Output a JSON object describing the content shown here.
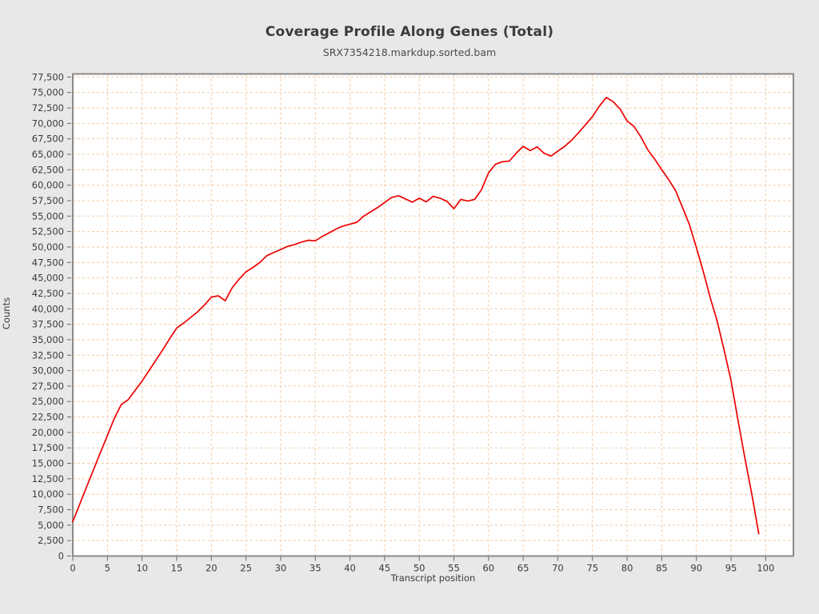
{
  "page": {
    "background": "#e8e8e8",
    "plot_background": "#ffffff"
  },
  "header": {
    "title": "Coverage Profile Along Genes (Total)",
    "subtitle": "SRX7354218.markdup.sorted.bam"
  },
  "axes": {
    "x_label": "Transcript position",
    "y_label": "Counts"
  },
  "chart_data": {
    "type": "line",
    "title": "Coverage Profile Along Genes (Total)",
    "subtitle": "SRX7354218.markdup.sorted.bam",
    "xlabel": "Transcript position",
    "ylabel": "Counts",
    "xlim": [
      0,
      104
    ],
    "ylim": [
      0,
      78000
    ],
    "grid": {
      "visible": true,
      "style": "dashed",
      "color": "#f3c9a2"
    },
    "legend_position": "none",
    "x_ticks": [
      0,
      5,
      10,
      15,
      20,
      25,
      30,
      35,
      40,
      45,
      50,
      55,
      60,
      65,
      70,
      75,
      80,
      85,
      90,
      95,
      100
    ],
    "y_ticks": [
      0,
      2500,
      5000,
      7500,
      10000,
      12500,
      15000,
      17500,
      20000,
      22500,
      25000,
      27500,
      30000,
      32500,
      35000,
      37500,
      40000,
      42500,
      45000,
      47500,
      50000,
      52500,
      55000,
      57500,
      60000,
      62500,
      65000,
      67500,
      70000,
      72500,
      75000,
      77500
    ],
    "series": [
      {
        "name": "SRX7354218.markdup.sorted.bam",
        "color": "#ee0000",
        "x_start": 0,
        "x_step": 1,
        "values": [
          5570,
          8400,
          11200,
          14000,
          16800,
          19500,
          22300,
          24500,
          25300,
          26800,
          28300,
          30000,
          31700,
          33400,
          35200,
          36900,
          37700,
          38600,
          39500,
          40600,
          41900,
          42100,
          41300,
          43400,
          44800,
          46000,
          46700,
          47500,
          48600,
          49100,
          49600,
          50100,
          50400,
          50800,
          51100,
          51000,
          51700,
          52300,
          52900,
          53400,
          53700,
          54000,
          55000,
          55700,
          56400,
          57200,
          58000,
          58300,
          57800,
          57250,
          57900,
          57300,
          58200,
          57900,
          57400,
          56200,
          57700,
          57450,
          57700,
          59300,
          62000,
          63400,
          63800,
          63900,
          65200,
          66300,
          65600,
          66200,
          65200,
          64700,
          65500,
          66300,
          67300,
          68500,
          69800,
          71100,
          72800,
          74200,
          73500,
          72300,
          70400,
          69500,
          67800,
          65700,
          64200,
          62500,
          60900,
          59100,
          56400,
          53600,
          49900,
          46000,
          41800,
          38000,
          33300,
          28400,
          22000,
          15800,
          10000,
          3600
        ]
      }
    ]
  }
}
